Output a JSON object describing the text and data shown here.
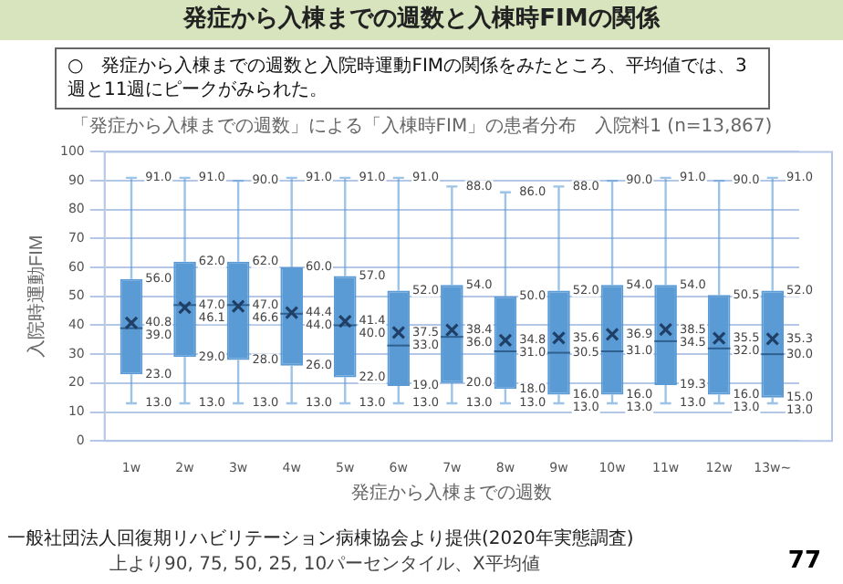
{
  "chart_data": {
    "type": "box",
    "title": "発症から入棟までの週数と入棟時FIMの関係",
    "subtitle": "○　発症から入棟までの週数と入院時運動FIMの関係をみたところ、平均値では、3週と11週にピークがみられた。",
    "xlabel": "発症から入棟までの週数",
    "ylabel": "入院時運動FIM",
    "categories": [
      "1w",
      "2w",
      "3w",
      "4w",
      "5w",
      "6w",
      "7w",
      "8w",
      "9w",
      "10w",
      "11w",
      "12w",
      "13w~"
    ],
    "boxes": [
      {
        "low": 13,
        "q1": 23,
        "median": 39,
        "q3": 56,
        "high": 91,
        "mean": 40.8
      },
      {
        "low": 13,
        "q1": 29,
        "median": 47,
        "q3": 62,
        "high": 91,
        "mean": 46.1
      },
      {
        "low": 13,
        "q1": 28,
        "median": 47,
        "q3": 62,
        "high": 90,
        "mean": 46.6
      },
      {
        "low": 13,
        "q1": 26,
        "median": 44,
        "q3": 60,
        "high": 91,
        "mean": 44.4
      },
      {
        "low": 13,
        "q1": 22,
        "median": 40,
        "q3": 57,
        "high": 91,
        "mean": 41.4
      },
      {
        "low": 13,
        "q1": 19,
        "median": 33,
        "q3": 52,
        "high": 91,
        "mean": 37.5
      },
      {
        "low": 13,
        "q1": 20,
        "median": 36,
        "q3": 54,
        "high": 88,
        "mean": 38.4
      },
      {
        "low": 13,
        "q1": 18,
        "median": 31,
        "q3": 50,
        "high": 86,
        "mean": 34.8
      },
      {
        "low": 13,
        "q1": 16,
        "median": 30.5,
        "q3": 52,
        "high": 88,
        "mean": 35.6
      },
      {
        "low": 13,
        "q1": 16,
        "median": 31,
        "q3": 54,
        "high": 90,
        "mean": 36.9
      },
      {
        "low": 13,
        "q1": 19.3,
        "median": 34.5,
        "q3": 54,
        "high": 91,
        "mean": 38.5
      },
      {
        "low": 13,
        "q1": 16,
        "median": 32,
        "q3": 50.5,
        "high": 90,
        "mean": 35.5
      },
      {
        "low": 13,
        "q1": 15,
        "median": 30,
        "q3": 52,
        "high": 91,
        "mean": 35.3
      }
    ],
    "value_labels": [
      [
        "91.0",
        "56.0",
        "39.0",
        "23.0",
        "13.0",
        "40.8"
      ],
      [
        "91.0",
        "62.0",
        "47.0",
        "29.0",
        "13.0",
        "46.1"
      ],
      [
        "90.0",
        "62.0",
        "47.0",
        "28.0",
        "13.0",
        "46.6"
      ],
      [
        "91.0",
        "60.0",
        "44.0",
        "26.0",
        "13.0",
        "44.4"
      ],
      [
        "91.0",
        "57.0",
        "40.0",
        "22.0",
        "13.0",
        "41.4"
      ],
      [
        "91.0",
        "52.0",
        "33.0",
        "19.0",
        "13.0",
        "37.5"
      ],
      [
        "88.0",
        "54.0",
        "36.0",
        "20.0",
        "13.0",
        "38.4"
      ],
      [
        "86.0",
        "50.0",
        "31.0",
        "18.0",
        "13.0",
        "34.8"
      ],
      [
        "88.0",
        "52.0",
        "30.5",
        "16.0",
        "13.0",
        "35.6"
      ],
      [
        "90.0",
        "54.0",
        "31.0",
        "16.0",
        "13.0",
        "36.9"
      ],
      [
        "91.0",
        "54.0",
        "34.5",
        "19.3",
        "13.0",
        "38.5"
      ],
      [
        "90.0",
        "50.5",
        "32.0",
        "16.0",
        "13.0",
        "35.5"
      ],
      [
        "91.0",
        "52.0",
        "30.0",
        "15.0",
        "13.0",
        "35.3"
      ]
    ],
    "color": "#5b9bd5",
    "ylim": [
      0,
      100
    ],
    "yticks": [
      0,
      10,
      20,
      30,
      40,
      50,
      60,
      70,
      80,
      90,
      100
    ],
    "grid": "y",
    "data_labels": true,
    "legend": false,
    "annotations": [
      "「発症から入棟までの週数」による「入棟時FIM」の患者分布　入院料1 (n=13,867)",
      "一般社団法人回復期リハビリテーション病棟協会より提供(2020年実態調査)",
      "上より90, 75, 50, 25, 10パーセンタイル、X平均値",
      "77"
    ]
  }
}
